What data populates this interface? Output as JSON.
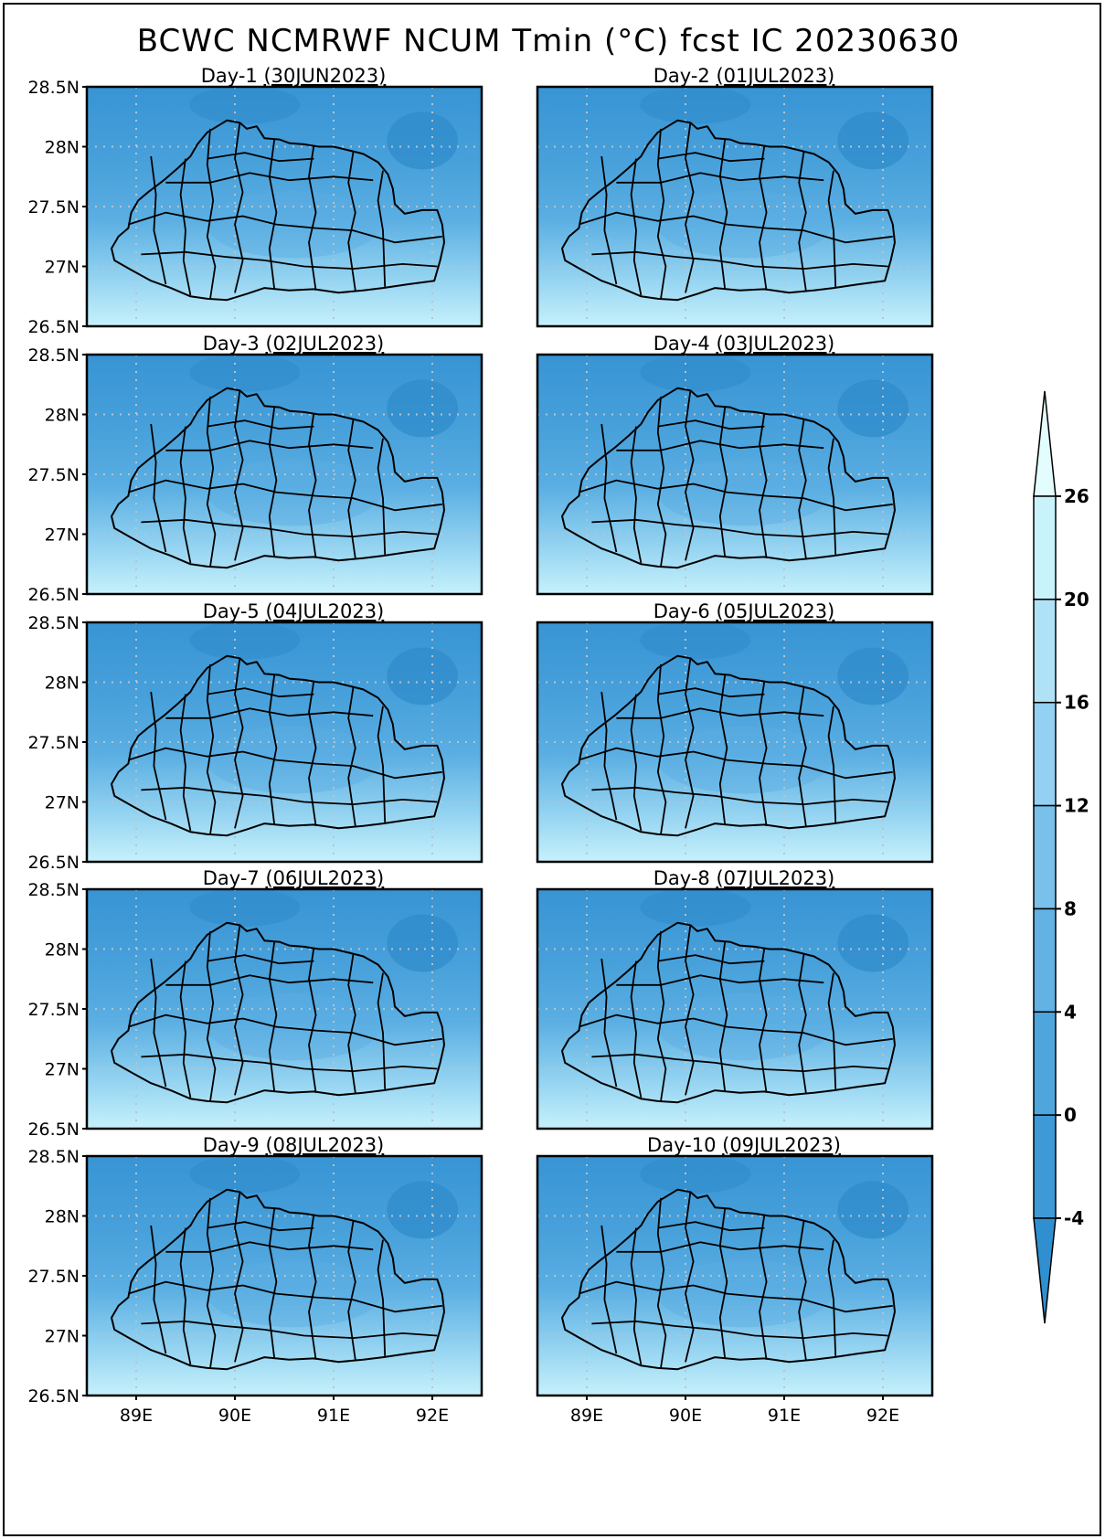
{
  "figure": {
    "title": "BCWC NCMRWF NCUM Tmin  (°C) fcst IC 20230630",
    "variable": "Tmin",
    "units": "°C",
    "init_date": "20230630",
    "panels": [
      {
        "label": "Day-1",
        "date": "(30JUN2023)"
      },
      {
        "label": "Day-2",
        "date": "(01JUL2023)"
      },
      {
        "label": "Day-3",
        "date": "(02JUL2023)"
      },
      {
        "label": "Day-4",
        "date": "(03JUL2023)"
      },
      {
        "label": "Day-5",
        "date": "(04JUL2023)"
      },
      {
        "label": "Day-6",
        "date": "(05JUL2023)"
      },
      {
        "label": "Day-7",
        "date": "(06JUL2023)"
      },
      {
        "label": "Day-8",
        "date": "(07JUL2023)"
      },
      {
        "label": "Day-9",
        "date": "(08JUL2023)"
      },
      {
        "label": "Day-10",
        "date": "(09JUL2023)"
      }
    ],
    "lat_axis": {
      "range": [
        26.5,
        28.5
      ],
      "ticks": [
        {
          "value": 28.5,
          "label": "28.5N"
        },
        {
          "value": 28,
          "label": "28N"
        },
        {
          "value": 27.5,
          "label": "27.5N"
        },
        {
          "value": 27,
          "label": "27N"
        },
        {
          "value": 26.5,
          "label": "26.5N"
        }
      ]
    },
    "lon_axis": {
      "range": [
        88.5,
        92.5
      ],
      "ticks": [
        {
          "value": 89,
          "label": "89E"
        },
        {
          "value": 90,
          "label": "90E"
        },
        {
          "value": 91,
          "label": "91E"
        },
        {
          "value": 92,
          "label": "92E"
        }
      ]
    },
    "colorbar": {
      "levels": [
        -4,
        0,
        4,
        8,
        12,
        16,
        20,
        26
      ],
      "labels": [
        "-4",
        "0",
        "4",
        "8",
        "12",
        "16",
        "20",
        "26"
      ],
      "colors": [
        "#2f8fcf",
        "#3e9ad6",
        "#4fa6dd",
        "#62b2e4",
        "#79c0ea",
        "#94d0f1",
        "#afe2f6",
        "#c9f3fb",
        "#e3fcfd"
      ]
    },
    "field_colors": {
      "top": "#3894d4",
      "upper": "#47a0da",
      "middle": "#5aaee2",
      "lower": "#8fd0f0",
      "bottom": "#c6f1fb",
      "dark_patch": "#2f8acb"
    }
  }
}
